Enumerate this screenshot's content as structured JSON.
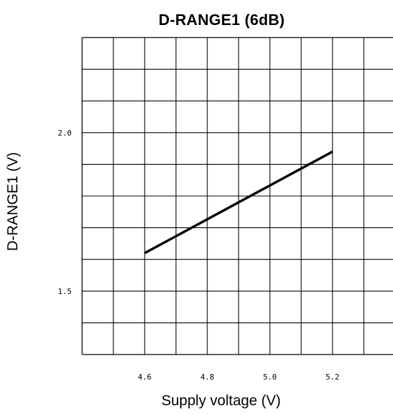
{
  "chart_data": {
    "type": "line",
    "title": "D-RANGE1 (6dB)",
    "xlabel": "Supply voltage (V)",
    "ylabel": "D-RANGE1 (V)",
    "xlim": [
      4.4,
      5.4
    ],
    "ylim": [
      1.3,
      2.3
    ],
    "xticks": [
      4.6,
      4.8,
      5.0,
      5.2
    ],
    "xtick_labels": [
      "4.6",
      "4.8",
      "5.0",
      "5.2"
    ],
    "yticks": [
      1.5,
      2.0
    ],
    "ytick_labels": [
      "1.5",
      "2.0"
    ],
    "grid": true,
    "x_gridlines": [
      4.5,
      4.6,
      4.7,
      4.8,
      4.9,
      5.0,
      5.1,
      5.2,
      5.3
    ],
    "y_gridlines": [
      1.4,
      1.5,
      1.6,
      1.7,
      1.8,
      1.9,
      2.0,
      2.1,
      2.2
    ],
    "series": [
      {
        "x": [
          4.6,
          5.2
        ],
        "y": [
          1.62,
          1.94
        ]
      }
    ]
  }
}
